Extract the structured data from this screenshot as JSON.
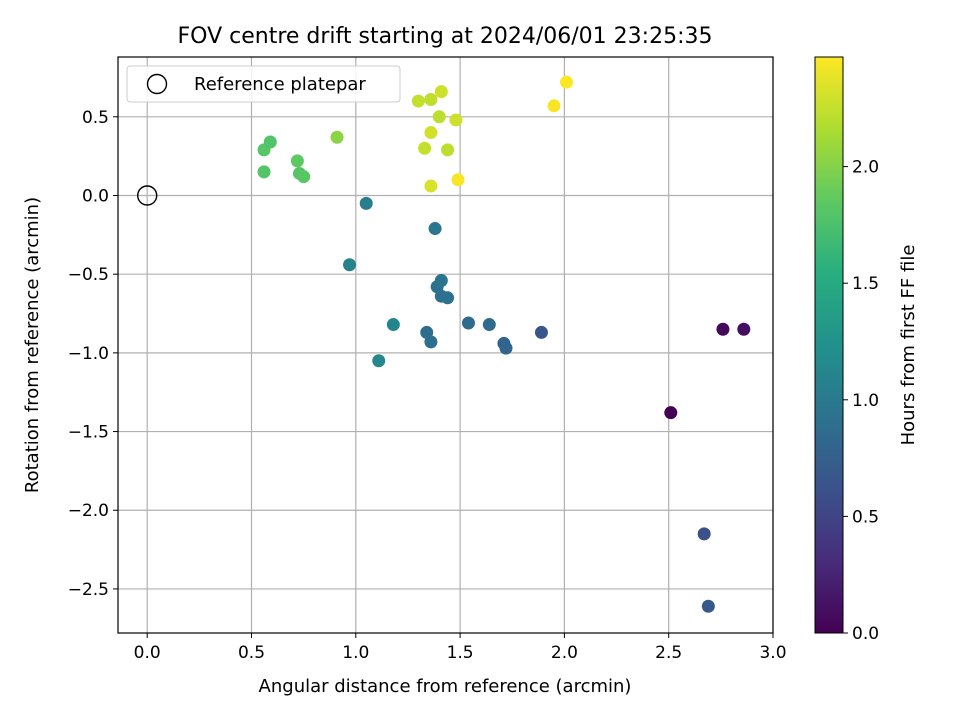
{
  "chart_data": {
    "type": "scatter",
    "title": "FOV centre drift starting at 2024/06/01 23:25:35",
    "xlabel": "Angular distance from reference (arcmin)",
    "ylabel": "Rotation from reference (arcmin)",
    "xlim": [
      -0.14,
      3.0
    ],
    "ylim": [
      -2.78,
      0.88
    ],
    "xticks": [
      0.0,
      0.5,
      1.0,
      1.5,
      2.0,
      2.5,
      3.0
    ],
    "xtick_labels": [
      "0.0",
      "0.5",
      "1.0",
      "1.5",
      "2.0",
      "2.5",
      "3.0"
    ],
    "yticks": [
      -2.5,
      -2.0,
      -1.5,
      -1.0,
      -0.5,
      0.0,
      0.5
    ],
    "ytick_labels": [
      "−2.5",
      "−2.0",
      "−1.5",
      "−1.0",
      "−0.5",
      "0.0",
      "0.5"
    ],
    "grid": true,
    "legend": {
      "location": "top-left",
      "entries": [
        "Reference platepar"
      ]
    },
    "reference_point": {
      "x": 0.0,
      "y": 0.0
    },
    "colorbar": {
      "label": "Hours from first FF file",
      "colormap": "viridis",
      "range": [
        0.0,
        2.47
      ],
      "ticks": [
        0.0,
        0.5,
        1.0,
        1.5,
        2.0
      ],
      "tick_labels": [
        "0.0",
        "0.5",
        "1.0",
        "1.5",
        "2.0"
      ]
    },
    "points": [
      {
        "x": 2.51,
        "y": -1.38,
        "hours": 0.0
      },
      {
        "x": 2.76,
        "y": -0.85,
        "hours": 0.05
      },
      {
        "x": 2.86,
        "y": -0.85,
        "hours": 0.1
      },
      {
        "x": 2.67,
        "y": -2.15,
        "hours": 0.6
      },
      {
        "x": 2.69,
        "y": -2.61,
        "hours": 0.68
      },
      {
        "x": 1.89,
        "y": -0.87,
        "hours": 0.65
      },
      {
        "x": 1.71,
        "y": -0.94,
        "hours": 0.78
      },
      {
        "x": 1.72,
        "y": -0.97,
        "hours": 0.8
      },
      {
        "x": 1.64,
        "y": -0.82,
        "hours": 0.86
      },
      {
        "x": 1.54,
        "y": -0.81,
        "hours": 0.86
      },
      {
        "x": 1.34,
        "y": -0.87,
        "hours": 0.88
      },
      {
        "x": 1.36,
        "y": -0.93,
        "hours": 0.9
      },
      {
        "x": 1.41,
        "y": -0.64,
        "hours": 0.9
      },
      {
        "x": 1.44,
        "y": -0.65,
        "hours": 0.92
      },
      {
        "x": 1.39,
        "y": -0.58,
        "hours": 0.93
      },
      {
        "x": 1.41,
        "y": -0.54,
        "hours": 0.95
      },
      {
        "x": 1.38,
        "y": -0.21,
        "hours": 0.97
      },
      {
        "x": 1.05,
        "y": -0.05,
        "hours": 1.05
      },
      {
        "x": 0.97,
        "y": -0.44,
        "hours": 1.1
      },
      {
        "x": 1.18,
        "y": -0.82,
        "hours": 1.12
      },
      {
        "x": 1.11,
        "y": -1.05,
        "hours": 1.15
      },
      {
        "x": 0.56,
        "y": 0.15,
        "hours": 1.8
      },
      {
        "x": 0.56,
        "y": 0.29,
        "hours": 1.82
      },
      {
        "x": 0.59,
        "y": 0.34,
        "hours": 1.78
      },
      {
        "x": 0.72,
        "y": 0.22,
        "hours": 1.85
      },
      {
        "x": 0.73,
        "y": 0.14,
        "hours": 1.8
      },
      {
        "x": 0.75,
        "y": 0.12,
        "hours": 1.82
      },
      {
        "x": 0.91,
        "y": 0.37,
        "hours": 2.03
      },
      {
        "x": 1.3,
        "y": 0.6,
        "hours": 2.25
      },
      {
        "x": 1.36,
        "y": 0.61,
        "hours": 2.23
      },
      {
        "x": 1.41,
        "y": 0.66,
        "hours": 2.28
      },
      {
        "x": 1.4,
        "y": 0.5,
        "hours": 2.22
      },
      {
        "x": 1.36,
        "y": 0.4,
        "hours": 2.3
      },
      {
        "x": 1.33,
        "y": 0.3,
        "hours": 2.25
      },
      {
        "x": 1.44,
        "y": 0.29,
        "hours": 2.22
      },
      {
        "x": 1.48,
        "y": 0.48,
        "hours": 2.28
      },
      {
        "x": 1.36,
        "y": 0.06,
        "hours": 2.33
      },
      {
        "x": 1.49,
        "y": 0.1,
        "hours": 2.45
      },
      {
        "x": 1.95,
        "y": 0.57,
        "hours": 2.45
      },
      {
        "x": 2.01,
        "y": 0.72,
        "hours": 2.47
      }
    ]
  }
}
